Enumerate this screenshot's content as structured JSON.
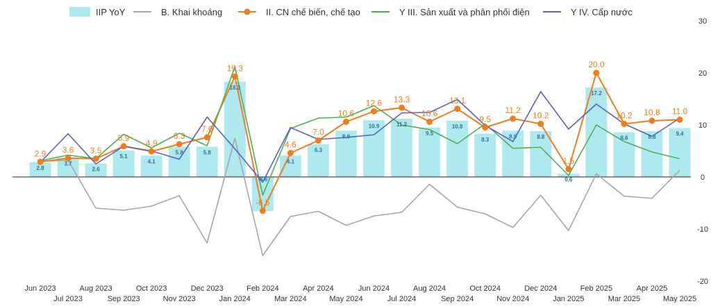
{
  "chart_data": {
    "type": "bar",
    "title": "",
    "xlabel": "",
    "ylabel": "",
    "ylim": [
      -20,
      30
    ],
    "yticks": [
      30,
      20,
      10,
      0,
      -10,
      -20
    ],
    "grid": false,
    "legend_position": "top",
    "categories": [
      "Jun 2023",
      "Jul 2023",
      "Aug 2023",
      "Sep 2023",
      "Oct 2023",
      "Nov 2023",
      "Dec 2023",
      "Jan 2024",
      "Feb 2024",
      "Mar 2024",
      "Apr 2024",
      "May 2024",
      "Jun 2024",
      "Jul 2024",
      "Aug 2024",
      "Sep 2024",
      "Oct 2024",
      "Nov 2024",
      "Dec 2024",
      "Jan 2025",
      "Feb 2025",
      "Mar 2025",
      "Apr 2025",
      "May 2025"
    ],
    "series": [
      {
        "name": "IIP YoY",
        "kind": "bar",
        "color": "#aee9f0",
        "label_color": "#2f6fa0",
        "values": [
          2.8,
          3.7,
          2.6,
          5.1,
          4.1,
          5.8,
          5.8,
          18.3,
          -6.6,
          4.1,
          6.3,
          8.9,
          10.9,
          11.2,
          9.5,
          10.8,
          8.3,
          8.9,
          8.8,
          0.6,
          17.2,
          8.6,
          8.8,
          9.4
        ]
      },
      {
        "name": "B. Khai khoáng",
        "kind": "line",
        "color": "#a6a6a6",
        "values": [
          3.0,
          3.2,
          -6.0,
          -6.4,
          -5.6,
          -3.6,
          -12.7,
          7.4,
          -15.1,
          -7.6,
          -6.6,
          -9.3,
          -7.5,
          -6.8,
          -1.4,
          -5.8,
          -7.1,
          -9.7,
          -3.5,
          -10.3,
          0.6,
          -3.7,
          -4.1,
          1.3
        ]
      },
      {
        "name": "II. CN chế biến, chế tạo",
        "kind": "line",
        "color": "#f07c1a",
        "values": [
          2.9,
          3.6,
          3.5,
          5.9,
          4.9,
          6.3,
          7.6,
          19.3,
          -6.5,
          4.6,
          7.0,
          10.6,
          12.6,
          13.3,
          10.6,
          13.1,
          9.5,
          11.2,
          10.2,
          1.5,
          20.0,
          10.2,
          10.8,
          11.0
        ]
      },
      {
        "name": "Y III. Sản xuất và phân phối điện",
        "kind": "line",
        "color": "#4caf50",
        "values": [
          3.1,
          4.2,
          3.5,
          8.2,
          5.6,
          8.4,
          6.0,
          21.2,
          -3.5,
          9.3,
          11.3,
          11.5,
          13.7,
          10.0,
          9.1,
          6.4,
          10.2,
          5.5,
          5.7,
          0.3,
          10.0,
          6.8,
          4.8,
          3.5
        ]
      },
      {
        "name": "Y IV. Cấp nước",
        "kind": "line",
        "color": "#5b5fc7",
        "values": [
          2.8,
          8.3,
          2.5,
          5.9,
          5.0,
          3.4,
          11.5,
          5.4,
          -1.0,
          9.5,
          7.2,
          7.6,
          8.1,
          12.3,
          12.4,
          14.9,
          9.9,
          6.8,
          16.4,
          9.2,
          14.0,
          10.2,
          7.8,
          11.3
        ]
      }
    ],
    "line_data_labels_series": "II. CN chế biến, chế tạo"
  }
}
